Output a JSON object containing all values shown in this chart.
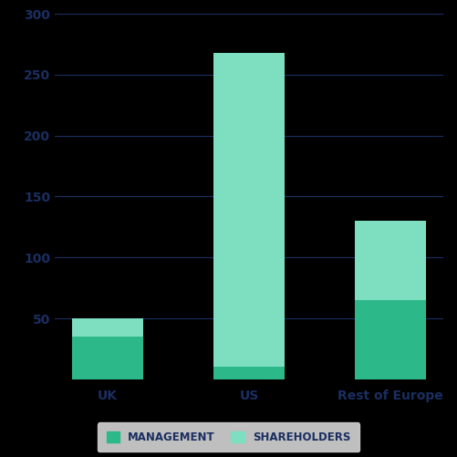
{
  "categories": [
    "UK",
    "US",
    "Rest of Europe"
  ],
  "management_values": [
    35,
    10,
    65
  ],
  "shareholders_values": [
    15,
    258,
    65
  ],
  "management_color": "#2db88a",
  "shareholders_color": "#7ddfbf",
  "background_color": "#000000",
  "plot_bg_color": "#000000",
  "grid_color": "#1a3060",
  "tick_color": "#1a2e60",
  "label_color": "#1a2e60",
  "ylim": [
    0,
    300
  ],
  "yticks": [
    50,
    100,
    150,
    200,
    250,
    300
  ],
  "legend_labels": [
    "MANAGEMENT",
    "SHAREHOLDERS"
  ],
  "legend_bg": "#f0f0f0",
  "legend_edge_color": "#dddddd",
  "bar_width": 0.5,
  "label_fontsize": 10,
  "legend_fontsize": 8.5,
  "tick_fontsize": 10
}
